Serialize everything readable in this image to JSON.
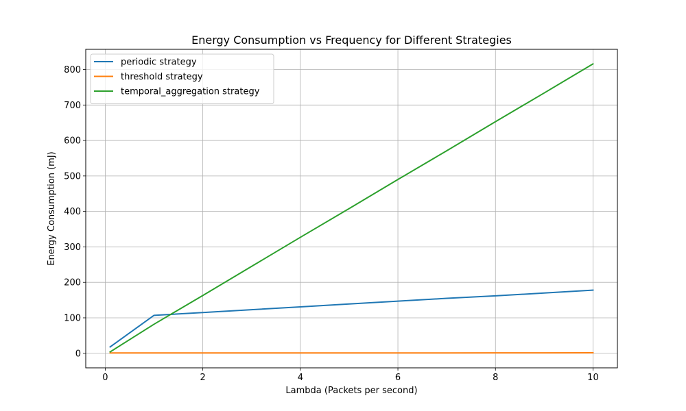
{
  "chart_data": {
    "type": "line",
    "title": "Energy Consumption vs Frequency for Different Strategies",
    "xlabel": "Lambda (Packets per second)",
    "ylabel": "Energy Consumption (mJ)",
    "xlim": [
      -0.4,
      10.5
    ],
    "ylim": [
      -41,
      857
    ],
    "x_ticks": [
      0,
      2,
      4,
      6,
      8,
      10
    ],
    "y_ticks": [
      0,
      100,
      200,
      300,
      400,
      500,
      600,
      700,
      800
    ],
    "grid": true,
    "legend_position": "top-left",
    "series": [
      {
        "name": "periodic strategy",
        "color": "#1f77b4",
        "x": [
          0.1,
          1,
          2,
          3,
          4,
          5,
          6,
          7,
          8,
          9,
          10
        ],
        "y": [
          18,
          107,
          115,
          123,
          131,
          139,
          147,
          155,
          162,
          170,
          178
        ]
      },
      {
        "name": "threshold strategy",
        "color": "#ff7f0e",
        "x": [
          0.1,
          1,
          2,
          3,
          4,
          5,
          6,
          7,
          8,
          9,
          10
        ],
        "y": [
          1,
          1,
          1,
          1,
          1,
          1,
          1,
          1,
          1.2,
          1.3,
          1.5
        ]
      },
      {
        "name": "temporal_aggregation strategy",
        "color": "#2ca02c",
        "x": [
          0.1,
          1,
          2,
          3,
          4,
          5,
          6,
          7,
          8,
          9,
          10
        ],
        "y": [
          4,
          82,
          163,
          245,
          327,
          408,
          490,
          571,
          653,
          734,
          816
        ]
      }
    ]
  }
}
